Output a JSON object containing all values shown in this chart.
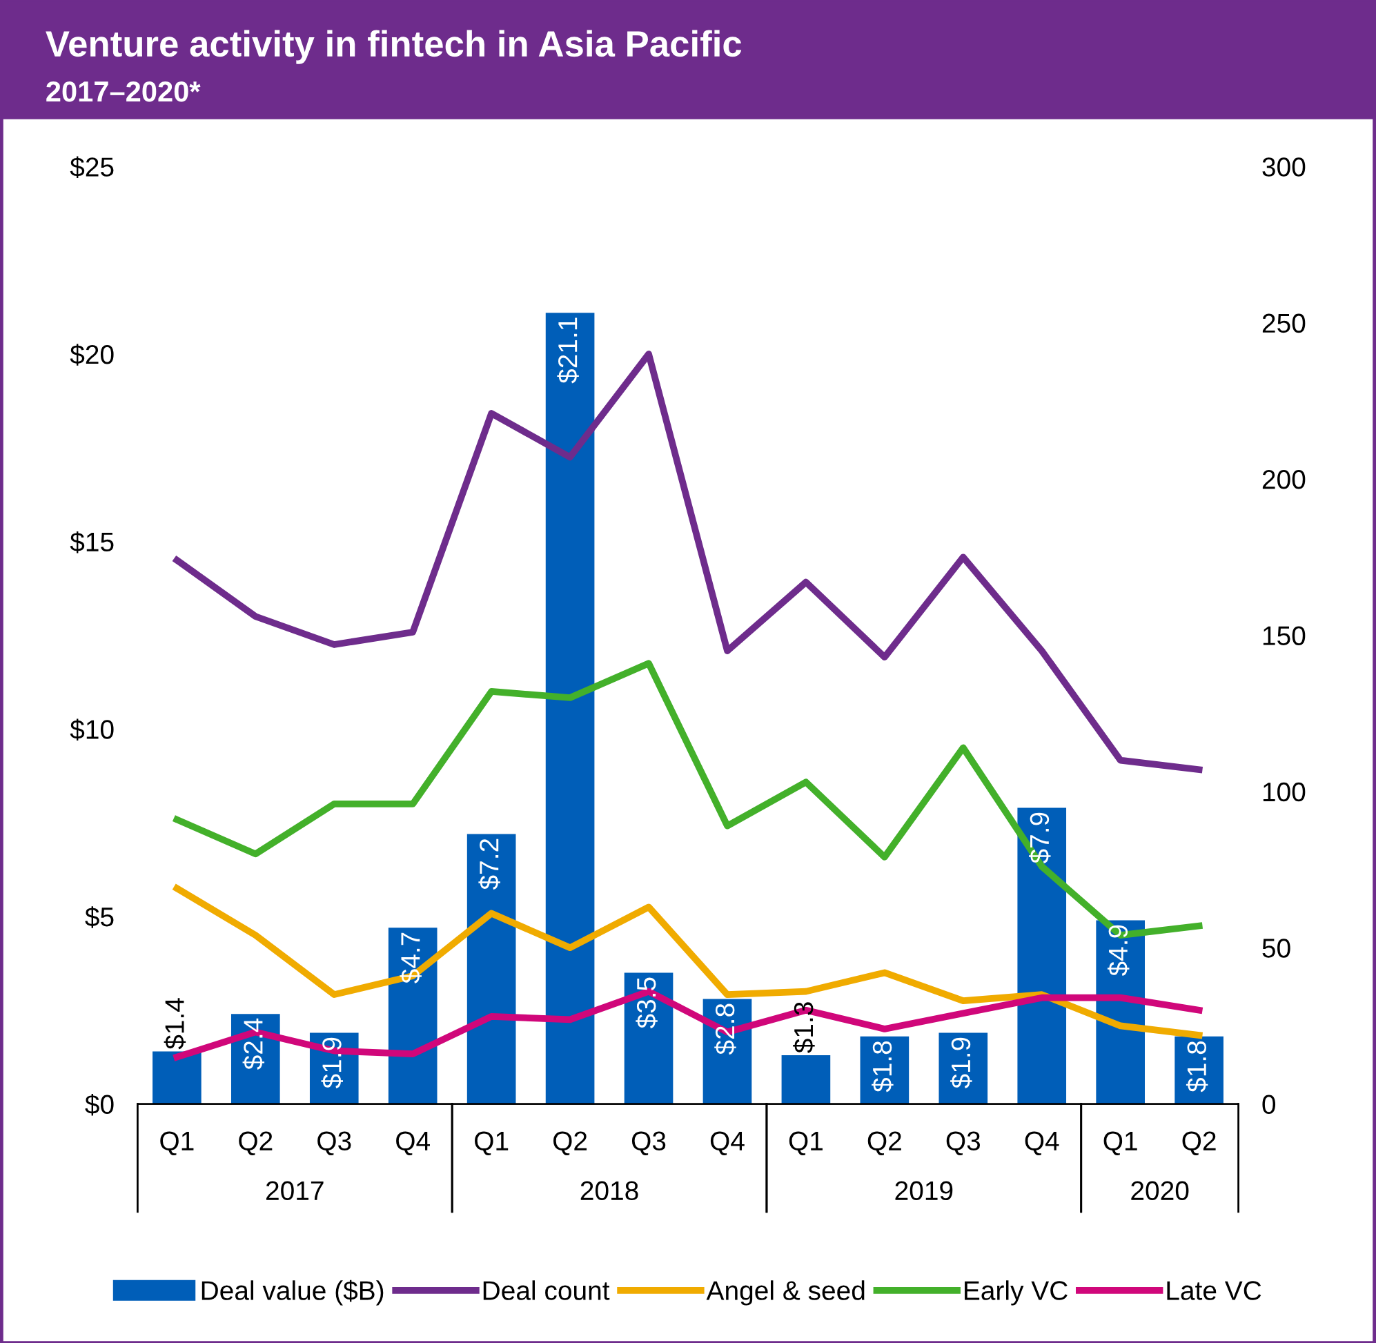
{
  "chart_data": {
    "type": "bar",
    "title": "Venture activity in fintech in Asia Pacific",
    "subtitle": "2017–2020*",
    "categories": [
      "Q1",
      "Q2",
      "Q3",
      "Q4",
      "Q1",
      "Q2",
      "Q3",
      "Q4",
      "Q1",
      "Q2",
      "Q3",
      "Q4",
      "Q1",
      "Q2"
    ],
    "annotations": [
      "2017",
      "2018",
      "2019",
      "2020"
    ],
    "series": [
      {
        "name": "Deal value ($B)",
        "color": "#005eb8",
        "values": [
          1.4,
          2.4,
          1.9,
          4.7,
          7.2,
          21.1,
          3.5,
          2.8,
          1.3,
          1.8,
          1.9,
          7.9,
          4.9,
          1.8
        ],
        "value_labels": [
          "$1.4",
          "$2.4",
          "$1.9",
          "$4.7",
          "$7.2",
          "$21.1",
          "$3.5",
          "$2.8",
          "$1.3",
          "$1.8",
          "$1.9",
          "$7.9",
          "$4.9",
          "$1.8"
        ]
      },
      {
        "name": "Deal count",
        "type": "line",
        "axis": "y2",
        "color": "#6e2c8c",
        "values": [
          174,
          156,
          147,
          151,
          221,
          207,
          240,
          145,
          167,
          143,
          175,
          145,
          110,
          107
        ]
      },
      {
        "name": "Angel & seed",
        "type": "line",
        "axis": "y2",
        "color": "#f0ab00",
        "values": [
          69,
          54,
          35,
          41,
          61,
          50,
          63,
          35,
          36,
          42,
          33,
          35,
          25,
          22
        ]
      },
      {
        "name": "Early VC",
        "type": "line",
        "axis": "y2",
        "color": "#43b02a",
        "values": [
          91,
          80,
          96,
          96,
          132,
          130,
          141,
          89,
          103,
          79,
          114,
          76,
          54,
          57
        ]
      },
      {
        "name": "Late VC",
        "type": "line",
        "axis": "y2",
        "color": "#d0077a",
        "values": [
          15,
          23,
          17,
          16,
          28,
          27,
          36,
          23,
          30,
          24,
          29,
          34,
          34,
          30
        ]
      }
    ],
    "ylim": [
      0,
      25
    ],
    "yticks": [
      {
        "value": 0,
        "label": "$0"
      },
      {
        "value": 5,
        "label": "$5"
      },
      {
        "value": 10,
        "label": "$10"
      },
      {
        "value": 15,
        "label": "$15"
      },
      {
        "value": 20,
        "label": "$20"
      },
      {
        "value": 25,
        "label": "$25"
      }
    ],
    "y2lim": [
      0,
      300
    ],
    "y2ticks": [
      0,
      50,
      100,
      150,
      200,
      250,
      300
    ],
    "grid": false,
    "legend": "bottom"
  }
}
